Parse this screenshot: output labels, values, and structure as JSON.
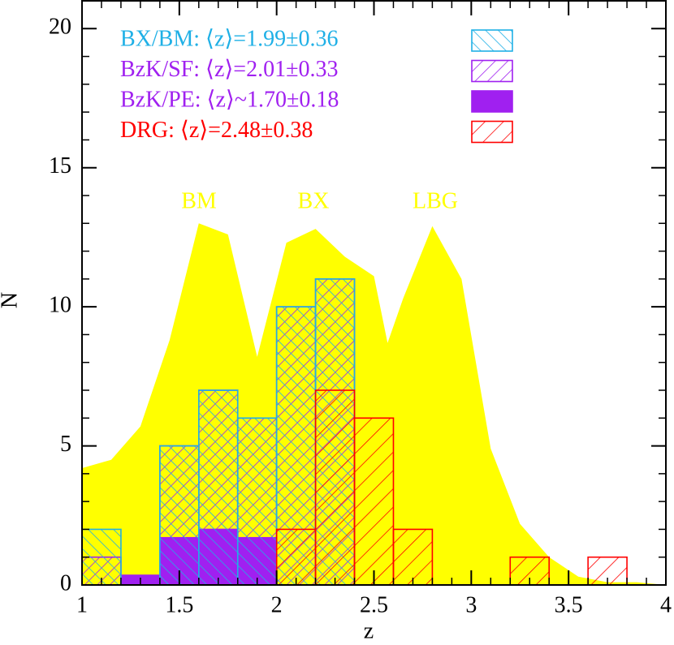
{
  "chart_data": {
    "type": "histogram",
    "xlabel": "z",
    "ylabel": "N",
    "xlim": [
      1,
      4
    ],
    "ylim": [
      0,
      21
    ],
    "xticks": [
      1,
      1.5,
      2,
      2.5,
      3,
      3.5,
      4
    ],
    "yticks": [
      0,
      5,
      10,
      15,
      20
    ],
    "x_minor_ticks": [
      1.1,
      1.2,
      1.3,
      1.4,
      1.6,
      1.7,
      1.8,
      1.9,
      2.1,
      2.2,
      2.3,
      2.4,
      2.6,
      2.7,
      2.8,
      2.9,
      3.1,
      3.2,
      3.3,
      3.4,
      3.6,
      3.7,
      3.8,
      3.9
    ],
    "y_minor_ticks": [
      1,
      2,
      3,
      4,
      6,
      7,
      8,
      9,
      11,
      12,
      13,
      14,
      16,
      17,
      18,
      19
    ],
    "bins": [
      1.0,
      1.2,
      1.4,
      1.6,
      1.8,
      2.0,
      2.2,
      2.4,
      2.6,
      2.8,
      3.0,
      3.2,
      3.4,
      3.6,
      3.8,
      4.0
    ],
    "area": {
      "color": "#ffff00",
      "x": [
        1.0,
        1.15,
        1.3,
        1.45,
        1.6,
        1.75,
        1.9,
        2.05,
        2.2,
        2.35,
        2.5,
        2.57,
        2.65,
        2.8,
        2.95,
        3.1,
        3.25,
        3.4,
        3.55,
        3.7,
        3.85,
        4.0
      ],
      "values": [
        4.2,
        4.5,
        5.7,
        8.8,
        13.0,
        12.6,
        8.2,
        12.3,
        12.8,
        11.8,
        11.1,
        8.7,
        10.3,
        12.9,
        11.0,
        4.9,
        2.2,
        1.0,
        0.3,
        0.1,
        0.1,
        0
      ]
    },
    "annotations": [
      "BM",
      "BX",
      "LBG"
    ],
    "series": [
      {
        "name": "BX/BM: ⟨z⟩=1.99±0.36",
        "color": "#1fb0e6",
        "hatch": -45,
        "values": [
          2,
          0,
          5,
          7,
          6,
          10,
          11,
          0,
          0,
          0,
          0,
          0,
          0,
          0,
          0
        ]
      },
      {
        "name": "BzK/SF: ⟨z⟩=2.01±0.33",
        "color": "#a020f0",
        "hatch": 45,
        "values": [
          1,
          0,
          5,
          7,
          6,
          10,
          11,
          0,
          0,
          0,
          0,
          0,
          0,
          0,
          0
        ]
      },
      {
        "name": "BzK/PE: ⟨z⟩~1.70±0.18",
        "color": "#a020f0",
        "hatch": null,
        "values": [
          0,
          0.35,
          1.7,
          2,
          1.7,
          0,
          0,
          0,
          0,
          0,
          0,
          0,
          0,
          0,
          0
        ]
      },
      {
        "name": "DRG: ⟨z⟩=2.48±0.38",
        "color": "#ff0000",
        "hatch": 45,
        "values": [
          0,
          0,
          0,
          0,
          0,
          2,
          7,
          6,
          2,
          0,
          0,
          1,
          0,
          1,
          0
        ]
      }
    ]
  }
}
